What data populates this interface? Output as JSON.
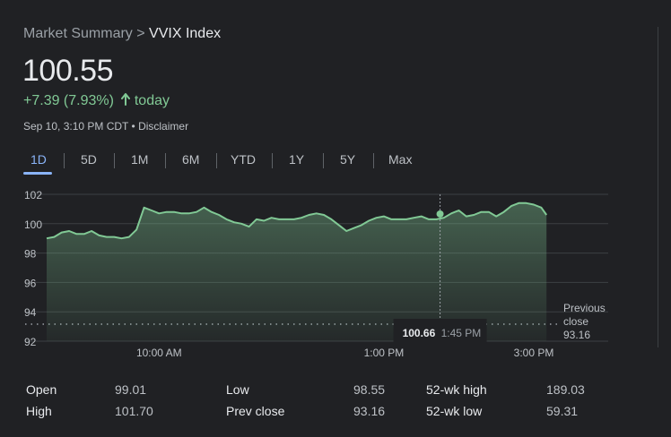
{
  "breadcrumb": {
    "parent": "Market Summary",
    "separator": ">",
    "current": "VVIX Index"
  },
  "price": "100.55",
  "change": {
    "text": "+7.39 (7.93%)",
    "period": "today",
    "color": "#81c995"
  },
  "timestamp": {
    "text": "Sep 10, 3:10 PM CDT",
    "separator": "•",
    "disclaimer": "Disclaimer"
  },
  "tabs": [
    {
      "label": "1D",
      "active": true
    },
    {
      "label": "5D"
    },
    {
      "label": "1M"
    },
    {
      "label": "6M"
    },
    {
      "label": "YTD"
    },
    {
      "label": "1Y"
    },
    {
      "label": "5Y"
    },
    {
      "label": "Max"
    }
  ],
  "colors": {
    "accent": "#8ab4f8",
    "line": "#81c995",
    "background": "#202124"
  },
  "chart_data": {
    "type": "area",
    "ylim": [
      92,
      102
    ],
    "yticks": [
      "102",
      "100",
      "98",
      "96",
      "94",
      "92"
    ],
    "ytick_values": [
      102,
      100,
      98,
      96,
      94,
      92
    ],
    "grid": true,
    "session_hours": [
      8.5,
      15.0
    ],
    "xticks": [
      {
        "label": "10:00 AM",
        "hour": 10.0
      },
      {
        "label": "1:00 PM",
        "hour": 13.0
      },
      {
        "label": "3:00 PM",
        "hour": 15.0
      }
    ],
    "series": [
      {
        "x": [
          8.5,
          8.6,
          8.7,
          8.8,
          8.9,
          9.0,
          9.1,
          9.2,
          9.3,
          9.4,
          9.5,
          9.6,
          9.7,
          9.8,
          9.9,
          10.0,
          10.1,
          10.2,
          10.3,
          10.4,
          10.5,
          10.6,
          10.7,
          10.8,
          10.9,
          11.0,
          11.1,
          11.2,
          11.3,
          11.4,
          11.5,
          11.6,
          11.7,
          11.8,
          11.9,
          12.0,
          12.1,
          12.2,
          12.3,
          12.4,
          12.5,
          12.6,
          12.7,
          12.8,
          12.9,
          13.0,
          13.1,
          13.2,
          13.3,
          13.4,
          13.5,
          13.6,
          13.7,
          13.8,
          13.9,
          14.0,
          14.1,
          14.2,
          14.3,
          14.4,
          14.5,
          14.6,
          14.7,
          14.8,
          14.9,
          15.0,
          15.1,
          15.17
        ],
        "values": [
          99.0,
          99.1,
          99.4,
          99.5,
          99.3,
          99.3,
          99.5,
          99.2,
          99.1,
          99.1,
          99.0,
          99.1,
          99.6,
          101.1,
          100.9,
          100.7,
          100.8,
          100.8,
          100.7,
          100.7,
          100.8,
          101.1,
          100.8,
          100.6,
          100.3,
          100.1,
          100.0,
          99.8,
          100.3,
          100.2,
          100.4,
          100.3,
          100.3,
          100.3,
          100.4,
          100.6,
          100.7,
          100.6,
          100.3,
          99.9,
          99.5,
          99.7,
          99.9,
          100.2,
          100.4,
          100.5,
          100.3,
          100.3,
          100.3,
          100.4,
          100.5,
          100.3,
          100.3,
          100.4,
          100.7,
          100.9,
          100.5,
          100.6,
          100.8,
          100.8,
          100.5,
          100.8,
          101.2,
          101.4,
          101.4,
          101.3,
          101.1,
          100.6
        ]
      }
    ],
    "previous_close": {
      "label_line1": "Previous",
      "label_line2": "close",
      "value": 93.16,
      "value_text": "93.16"
    },
    "tooltip": {
      "value": 100.66,
      "value_text": "100.66",
      "time": "1:45 PM",
      "hour": 13.75
    }
  },
  "stats": [
    {
      "label": "Open",
      "value": "99.01"
    },
    {
      "label": "High",
      "value": "101.70"
    },
    {
      "label": "Low",
      "value": "98.55"
    },
    {
      "label": "Prev close",
      "value": "93.16"
    },
    {
      "label": "52-wk high",
      "value": "189.03"
    },
    {
      "label": "52-wk low",
      "value": "59.31"
    }
  ]
}
